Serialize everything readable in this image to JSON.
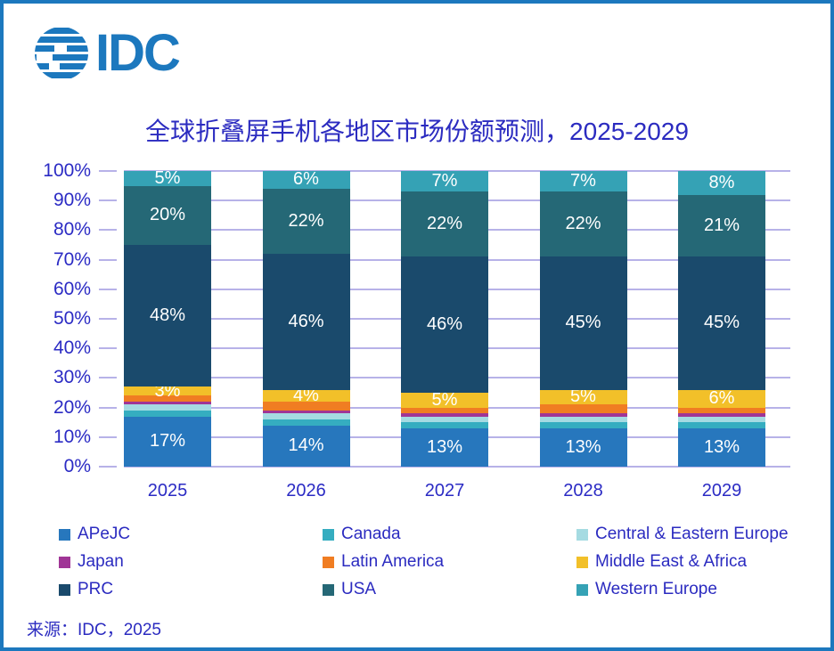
{
  "logo": {
    "text": "IDC"
  },
  "title": "全球折叠屏手机各地区市场份额预测，2025-2029",
  "source": "来源：IDC，2025",
  "brand_color": "#1c78be",
  "text_color": "#2b2bc0",
  "gridline_color": "#b7b2e8",
  "chart_data": {
    "type": "bar",
    "stacked": true,
    "title": "全球折叠屏手机各地区市场份额预测，2025-2029",
    "categories": [
      "2025",
      "2026",
      "2027",
      "2028",
      "2029"
    ],
    "series": [
      {
        "name": "APeJC",
        "color": "#2777bd",
        "values": [
          17,
          14,
          13,
          13,
          13
        ],
        "labeled": true
      },
      {
        "name": "Canada",
        "color": "#35adc0",
        "values": [
          2,
          2,
          2,
          2,
          2
        ],
        "labeled": false
      },
      {
        "name": "Central & Eastern Europe",
        "color": "#a5dbe2",
        "values": [
          2,
          2,
          2,
          2,
          2
        ],
        "labeled": false
      },
      {
        "name": "Japan",
        "color": "#a03596",
        "values": [
          1,
          1,
          1,
          1,
          1
        ],
        "labeled": false
      },
      {
        "name": "Latin America",
        "color": "#f07d22",
        "values": [
          2,
          3,
          2,
          3,
          2
        ],
        "labeled": false
      },
      {
        "name": "Middle East & Africa",
        "color": "#f2c029",
        "values": [
          3,
          4,
          5,
          5,
          6
        ],
        "labeled": true
      },
      {
        "name": "PRC",
        "color": "#1a4a6c",
        "values": [
          48,
          46,
          46,
          45,
          45
        ],
        "labeled": true
      },
      {
        "name": "USA",
        "color": "#256876",
        "values": [
          20,
          22,
          22,
          22,
          21
        ],
        "labeled": true
      },
      {
        "name": "Western Europe",
        "color": "#35a2b5",
        "values": [
          5,
          6,
          7,
          7,
          8
        ],
        "labeled": true
      }
    ],
    "y_ticks": [
      "0%",
      "10%",
      "20%",
      "30%",
      "40%",
      "50%",
      "60%",
      "70%",
      "80%",
      "90%",
      "100%"
    ],
    "ylim": [
      0,
      100
    ],
    "grid": true,
    "legend_position": "bottom"
  }
}
